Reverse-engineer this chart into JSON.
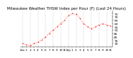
{
  "title": "Milwaukee Weather THSW Index per Hour (F) (Last 24 Hours)",
  "x_values": [
    0,
    1,
    2,
    3,
    4,
    5,
    6,
    7,
    8,
    9,
    10,
    11,
    12,
    13,
    14,
    15,
    16,
    17,
    18,
    19,
    20,
    21,
    22,
    23
  ],
  "y_values": [
    30,
    28,
    27,
    30,
    32,
    35,
    40,
    45,
    50,
    55,
    60,
    65,
    72,
    75,
    74,
    68,
    60,
    55,
    52,
    55,
    58,
    60,
    58,
    56
  ],
  "line_color": "#ff0000",
  "marker_color": "#ff0000",
  "background_color": "#ffffff",
  "grid_color": "#aaaaaa",
  "tick_color": "#000000",
  "ylim": [
    25,
    80
  ],
  "yticks": [
    30,
    35,
    40,
    45,
    50,
    55,
    60,
    65,
    70,
    75
  ],
  "xlabel_fontsize": 3.0,
  "ylabel_fontsize": 3.2,
  "title_fontsize": 4.0,
  "x_tick_labels": [
    "12a",
    "1",
    "2",
    "3",
    "4",
    "5",
    "6",
    "7",
    "8",
    "9",
    "10",
    "11",
    "12p",
    "1",
    "2",
    "3",
    "4",
    "5",
    "6",
    "7",
    "8",
    "9",
    "10",
    "11"
  ],
  "grid_every": 2
}
